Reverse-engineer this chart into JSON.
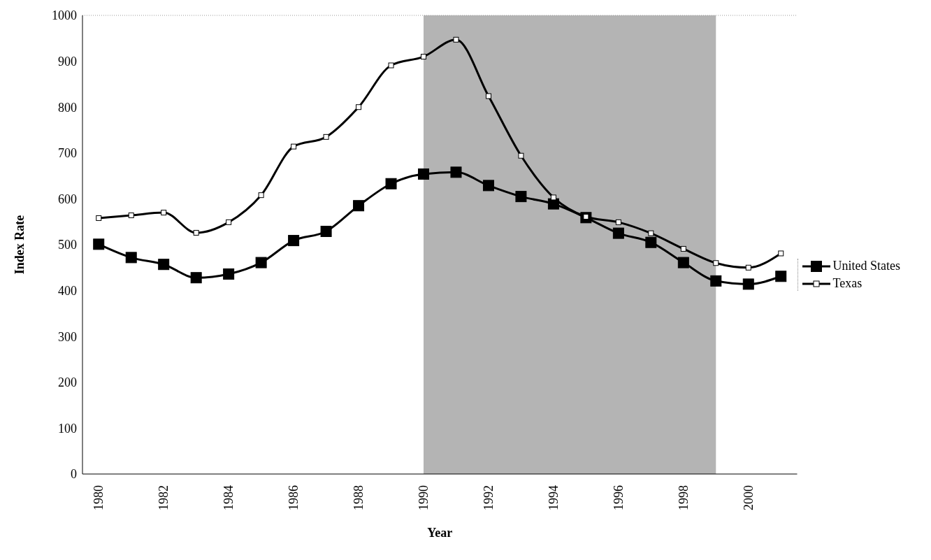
{
  "chart_data": {
    "type": "line",
    "xlabel": "Year",
    "ylabel": "Index Rate",
    "x": [
      1980,
      1981,
      1982,
      1983,
      1984,
      1985,
      1986,
      1987,
      1988,
      1989,
      1990,
      1991,
      1992,
      1993,
      1994,
      1995,
      1996,
      1997,
      1998,
      1999,
      2000,
      2001
    ],
    "series": [
      {
        "name": "United States",
        "color": "#000000",
        "values": [
          501,
          472,
          457,
          428,
          436,
          461,
          509,
          529,
          585,
          633,
          654,
          658,
          629,
          605,
          589,
          559,
          525,
          505,
          461,
          421,
          414,
          431
        ]
      },
      {
        "name": "Texas",
        "color": "#000000",
        "values": [
          558,
          564,
          570,
          526,
          549,
          608,
          714,
          735,
          800,
          891,
          910,
          947,
          824,
          694,
          603,
          561,
          549,
          525,
          491,
          460,
          450,
          481
        ]
      }
    ],
    "xlim": [
      1979.5,
      2001.5
    ],
    "xticks": [
      1980,
      1982,
      1984,
      1986,
      1988,
      1990,
      1992,
      1994,
      1996,
      1998,
      2000
    ],
    "ylim": [
      0,
      1000
    ],
    "yticks": [
      0,
      100,
      200,
      300,
      400,
      500,
      600,
      700,
      800,
      900,
      1000
    ],
    "bands": [
      {
        "axis": "x",
        "from": 1990,
        "to": 1999,
        "color": "#b4b4b4"
      }
    ],
    "grid": false,
    "legend": "right",
    "marker": "square",
    "line_style": "solid"
  }
}
